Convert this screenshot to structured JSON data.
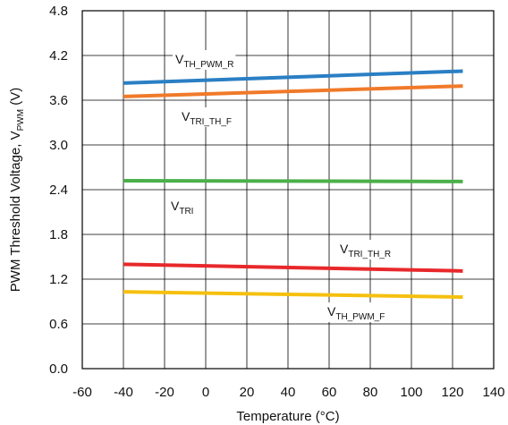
{
  "chart_data": {
    "type": "line",
    "xlabel": "Temperature (°C)",
    "ylabel": {
      "main": "PWM Threshold Voltage, V",
      "sub": "PWM",
      "suffix": " (V)"
    },
    "xlim": [
      -60,
      140
    ],
    "ylim": [
      0,
      4.8
    ],
    "xticks": [
      -60,
      -40,
      -20,
      0,
      20,
      40,
      60,
      80,
      100,
      120,
      140
    ],
    "yticks": [
      "0.0",
      "0.6",
      "1.2",
      "1.8",
      "2.4",
      "3.0",
      "3.6",
      "4.2",
      "4.8"
    ],
    "grid": true,
    "series": [
      {
        "key": "th_pwm_r",
        "label_main": "V",
        "label_sub": "TH_PWM_R",
        "color": "#2a7fc4",
        "x": [
          -40,
          125
        ],
        "y": [
          3.83,
          3.99
        ]
      },
      {
        "key": "tri_th_f",
        "label_main": "V",
        "label_sub": "TRI_TH_F",
        "color": "#f07a2a",
        "x": [
          -40,
          125
        ],
        "y": [
          3.65,
          3.79
        ]
      },
      {
        "key": "tri",
        "label_main": "V",
        "label_sub": "TRI",
        "color": "#4bb04a",
        "x": [
          -40,
          125
        ],
        "y": [
          2.52,
          2.51
        ]
      },
      {
        "key": "tri_th_r",
        "label_main": "V",
        "label_sub": "TRI_TH_R",
        "color": "#e8282b",
        "x": [
          -40,
          125
        ],
        "y": [
          1.4,
          1.31
        ]
      },
      {
        "key": "th_pwm_f",
        "label_main": "V",
        "label_sub": "TH_PWM_F",
        "color": "#f5c00f",
        "x": [
          -40,
          125
        ],
        "y": [
          1.03,
          0.96
        ]
      }
    ]
  }
}
